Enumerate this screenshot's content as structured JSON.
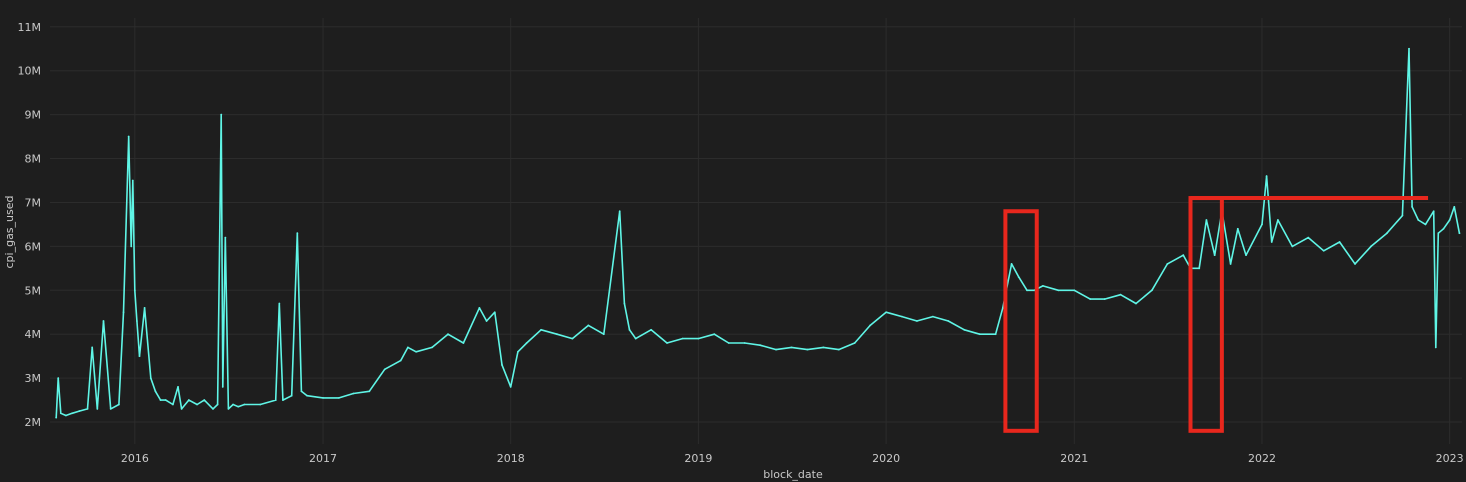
{
  "chart_data": {
    "type": "line",
    "title": "",
    "xlabel": "block_date",
    "ylabel": "cpi_gas_used",
    "grid": true,
    "legend": "none",
    "xlim": [
      "2015-07-20",
      "2023-01-25"
    ],
    "ylim": [
      1500000,
      11200000
    ],
    "x_ticks": [
      "2016",
      "2017",
      "2018",
      "2019",
      "2020",
      "2021",
      "2022",
      "2023"
    ],
    "y_ticks": [
      "2M",
      "3M",
      "4M",
      "5M",
      "6M",
      "7M",
      "8M",
      "9M",
      "10M",
      "11M"
    ],
    "series": [
      {
        "color": "#5ff5e6",
        "x": [
          "2015-08-01",
          "2015-08-05",
          "2015-08-10",
          "2015-08-20",
          "2015-09-01",
          "2015-09-15",
          "2015-10-01",
          "2015-10-10",
          "2015-10-20",
          "2015-11-01",
          "2015-11-15",
          "2015-12-01",
          "2015-12-10",
          "2015-12-20",
          "2015-12-25",
          "2015-12-28",
          "2016-01-01",
          "2016-01-05",
          "2016-01-10",
          "2016-01-20",
          "2016-02-01",
          "2016-02-10",
          "2016-02-20",
          "2016-03-01",
          "2016-03-15",
          "2016-03-25",
          "2016-04-01",
          "2016-04-15",
          "2016-05-01",
          "2016-05-15",
          "2016-06-01",
          "2016-06-10",
          "2016-06-17",
          "2016-06-20",
          "2016-06-25",
          "2016-07-01",
          "2016-07-10",
          "2016-07-20",
          "2016-08-01",
          "2016-09-01",
          "2016-10-01",
          "2016-10-08",
          "2016-10-15",
          "2016-11-01",
          "2016-11-12",
          "2016-11-20",
          "2016-12-01",
          "2017-01-01",
          "2017-02-01",
          "2017-03-01",
          "2017-04-01",
          "2017-05-01",
          "2017-06-01",
          "2017-06-15",
          "2017-07-01",
          "2017-08-01",
          "2017-09-01",
          "2017-10-01",
          "2017-11-01",
          "2017-11-15",
          "2017-12-01",
          "2017-12-15",
          "2018-01-01",
          "2018-01-15",
          "2018-02-01",
          "2018-03-01",
          "2018-04-01",
          "2018-05-01",
          "2018-06-01",
          "2018-07-01",
          "2018-08-01",
          "2018-08-10",
          "2018-08-20",
          "2018-09-01",
          "2018-10-01",
          "2018-11-01",
          "2018-12-01",
          "2019-01-01",
          "2019-02-01",
          "2019-03-01",
          "2019-04-01",
          "2019-05-01",
          "2019-06-01",
          "2019-07-01",
          "2019-08-01",
          "2019-09-01",
          "2019-10-01",
          "2019-11-01",
          "2019-12-01",
          "2020-01-01",
          "2020-02-01",
          "2020-03-01",
          "2020-04-01",
          "2020-05-01",
          "2020-06-01",
          "2020-07-01",
          "2020-08-01",
          "2020-08-15",
          "2020-09-01",
          "2020-09-15",
          "2020-10-01",
          "2020-10-15",
          "2020-11-01",
          "2020-12-01",
          "2021-01-01",
          "2021-02-01",
          "2021-03-01",
          "2021-04-01",
          "2021-05-01",
          "2021-06-01",
          "2021-07-01",
          "2021-08-01",
          "2021-08-15",
          "2021-09-01",
          "2021-09-15",
          "2021-10-01",
          "2021-10-15",
          "2021-11-01",
          "2021-11-15",
          "2021-12-01",
          "2022-01-01",
          "2022-01-10",
          "2022-01-20",
          "2022-02-01",
          "2022-03-01",
          "2022-04-01",
          "2022-05-01",
          "2022-06-01",
          "2022-07-01",
          "2022-08-01",
          "2022-09-01",
          "2022-10-01",
          "2022-10-14",
          "2022-10-20",
          "2022-11-01",
          "2022-11-15",
          "2022-12-01",
          "2022-12-05",
          "2022-12-10",
          "2022-12-20",
          "2023-01-01",
          "2023-01-10",
          "2023-01-20"
        ],
        "y": [
          2100000,
          3000000,
          2200000,
          2150000,
          2200000,
          2250000,
          2300000,
          3700000,
          2300000,
          4300000,
          2300000,
          2400000,
          4500000,
          8500000,
          6000000,
          7500000,
          5000000,
          4300000,
          3500000,
          4600000,
          3000000,
          2700000,
          2500000,
          2500000,
          2400000,
          2800000,
          2300000,
          2500000,
          2400000,
          2500000,
          2300000,
          2400000,
          9000000,
          2800000,
          6200000,
          2300000,
          2400000,
          2350000,
          2400000,
          2400000,
          2500000,
          4700000,
          2500000,
          2600000,
          6300000,
          2700000,
          2600000,
          2550000,
          2550000,
          2650000,
          2700000,
          3200000,
          3400000,
          3700000,
          3600000,
          3700000,
          4000000,
          3800000,
          4600000,
          4300000,
          4500000,
          3300000,
          2800000,
          3600000,
          3800000,
          4100000,
          4000000,
          3900000,
          4200000,
          4000000,
          6800000,
          4700000,
          4100000,
          3900000,
          4100000,
          3800000,
          3900000,
          3900000,
          4000000,
          3800000,
          3800000,
          3750000,
          3650000,
          3700000,
          3650000,
          3700000,
          3650000,
          3800000,
          4200000,
          4500000,
          4400000,
          4300000,
          4400000,
          4300000,
          4100000,
          4000000,
          4000000,
          4600000,
          5600000,
          5300000,
          5000000,
          5000000,
          5100000,
          5000000,
          5000000,
          4800000,
          4800000,
          4900000,
          4700000,
          5000000,
          5600000,
          5800000,
          5500000,
          5500000,
          6600000,
          5800000,
          6800000,
          5600000,
          6400000,
          5800000,
          6500000,
          7600000,
          6100000,
          6600000,
          6000000,
          6200000,
          5900000,
          6100000,
          5600000,
          6000000,
          6300000,
          6700000,
          10500000,
          6900000,
          6600000,
          6500000,
          6800000,
          3700000,
          6300000,
          6400000,
          6600000,
          6900000,
          6300000
        ]
      }
    ],
    "annotations": [
      {
        "kind": "box",
        "x": [
          "2020-08-20",
          "2020-10-20"
        ],
        "y": [
          1800000,
          6800000
        ],
        "color": "#e8271d"
      },
      {
        "kind": "box",
        "x": [
          "2021-08-15",
          "2021-10-15"
        ],
        "y": [
          1800000,
          7100000
        ],
        "color": "#e8271d"
      },
      {
        "kind": "hline",
        "x": [
          "2021-08-15",
          "2022-11-20"
        ],
        "y": 7100000,
        "color": "#e8271d"
      }
    ]
  }
}
